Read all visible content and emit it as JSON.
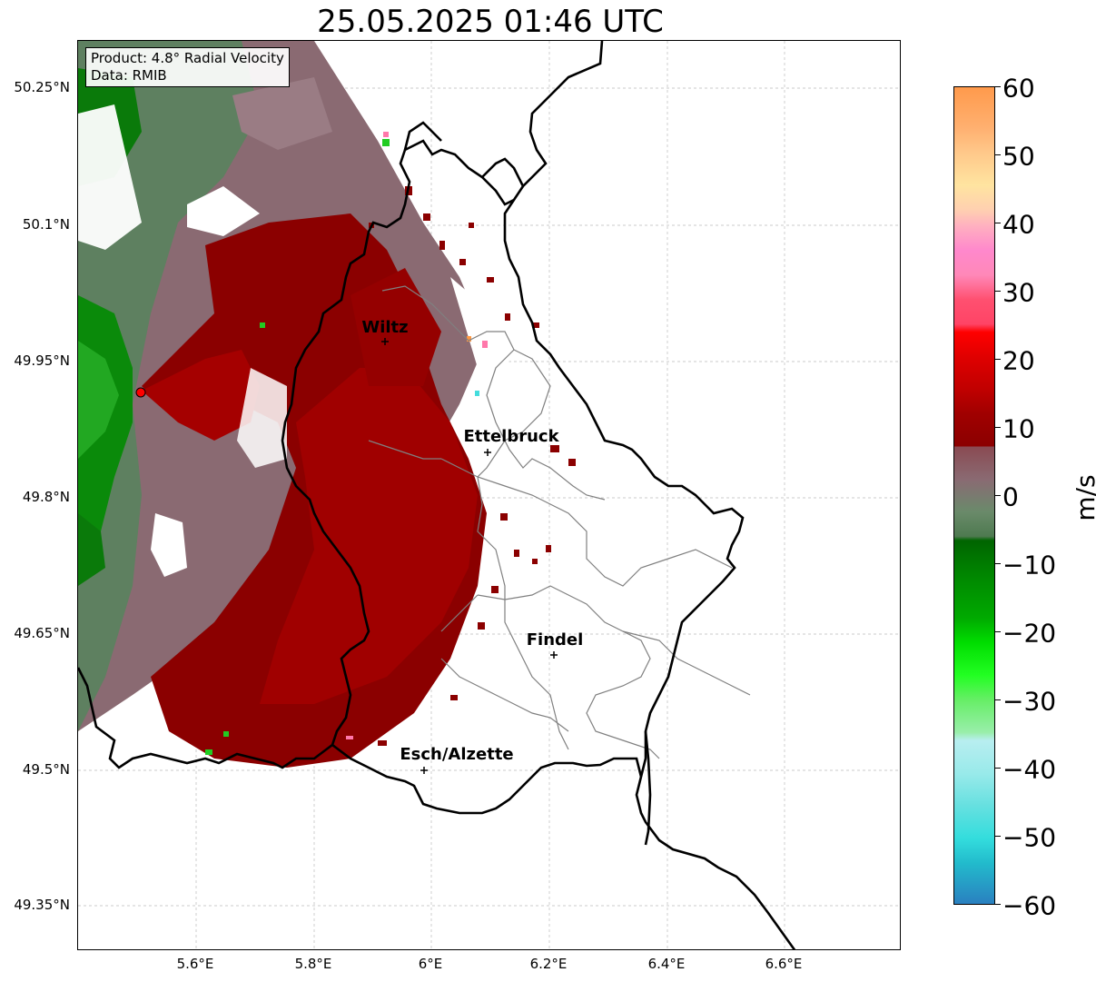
{
  "title": "25.05.2025 01:46 UTC",
  "info": {
    "product": "Product: 4.8° Radial Velocity",
    "data": "Data: RMIB"
  },
  "axes": {
    "lat_labels": [
      "50.25°N",
      "50.1°N",
      "49.95°N",
      "49.8°N",
      "49.65°N",
      "49.5°N",
      "49.35°N"
    ],
    "lon_labels": [
      "5.6°E",
      "5.8°E",
      "6°E",
      "6.2°E",
      "6.4°E",
      "6.6°E"
    ]
  },
  "cities": [
    {
      "name": "Wiltz"
    },
    {
      "name": "Ettelbruck"
    },
    {
      "name": "Findel"
    },
    {
      "name": "Esch/Alzette"
    }
  ],
  "colorbar": {
    "unit": "m/s",
    "ticks": [
      "60",
      "50",
      "40",
      "30",
      "20",
      "10",
      "0",
      "−10",
      "−20",
      "−30",
      "−40",
      "−50",
      "−60"
    ],
    "range": [
      -60,
      60
    ]
  },
  "colors": {
    "outbound_dark_red": "#8b0000",
    "outbound_red": "#a80000",
    "near_zero_mauve": "#8a6a72",
    "near_zero_green": "#5e8060",
    "inbound_green": "#0a8a0a",
    "radar_site": "#ff0000"
  }
}
